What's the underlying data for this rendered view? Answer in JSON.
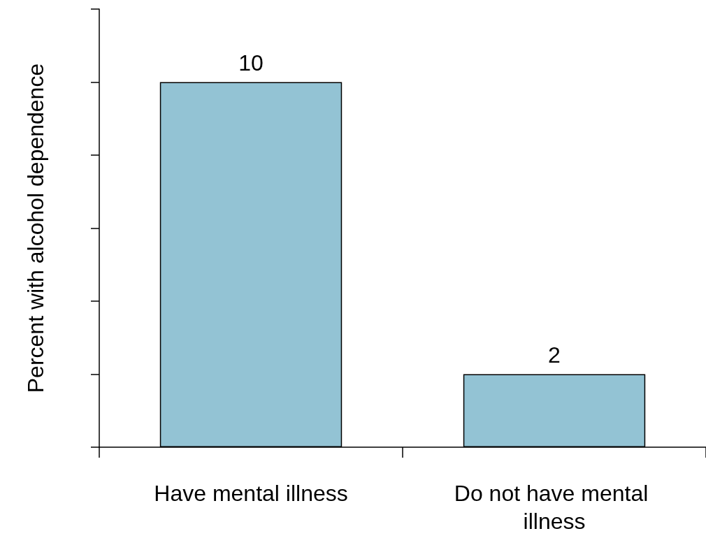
{
  "chart_data": {
    "type": "bar",
    "ylabel": "Percent with alcohol dependence",
    "categories": [
      "Have mental illness",
      "Do not have mental illness"
    ],
    "values": [
      10,
      2
    ],
    "color": "#93c3d4",
    "ylim": [
      0,
      12
    ],
    "yticks": [
      {
        "value": 0,
        "label": null
      },
      {
        "value": 2,
        "label": null
      },
      {
        "value": 4,
        "label": null
      },
      {
        "value": 6,
        "label": null
      },
      {
        "value": 8,
        "label": null
      },
      {
        "value": 10,
        "label": null
      },
      {
        "value": 12,
        "label": null
      }
    ],
    "tick_labels": "x",
    "data_labels": true
  }
}
